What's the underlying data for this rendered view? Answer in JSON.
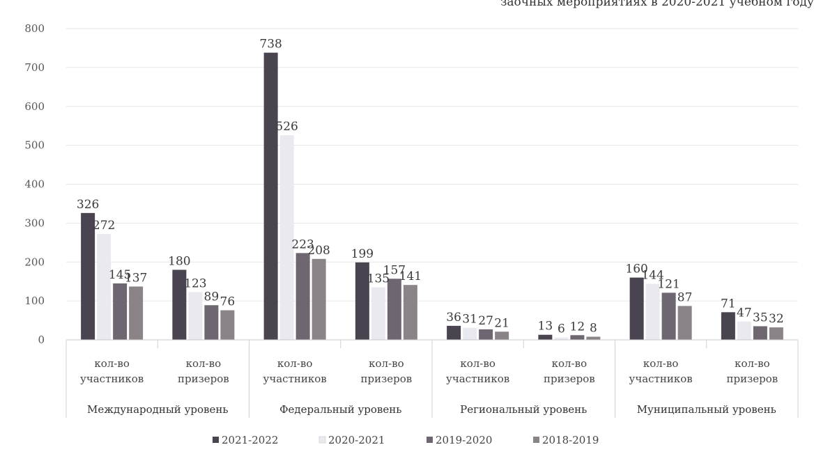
{
  "chart_data": {
    "type": "bar",
    "title": "заочных мероприятиях в 2020-2021 учебном году",
    "ylim": [
      0,
      800
    ],
    "yticks": [
      0,
      100,
      200,
      300,
      400,
      500,
      600,
      700,
      800
    ],
    "grid": true,
    "legend_position": "bottom",
    "groups": [
      {
        "label": "Международный уровень",
        "categories": [
          [
            "кол-во",
            "участников"
          ],
          [
            "кол-во",
            "призеров"
          ]
        ]
      },
      {
        "label": "Федеральный уровень",
        "categories": [
          [
            "кол-во",
            "участников"
          ],
          [
            "кол-во",
            "призеров"
          ]
        ]
      },
      {
        "label": "Региональный уровень",
        "categories": [
          [
            "кол-во",
            "участников"
          ],
          [
            "кол-во",
            "призеров"
          ]
        ]
      },
      {
        "label": "Муниципальный уровень",
        "categories": [
          [
            "кол-во",
            "участников"
          ],
          [
            "кол-во",
            "призеров"
          ]
        ]
      }
    ],
    "series": [
      {
        "name": "2021-2022",
        "color": "#4a4450",
        "values": [
          326,
          180,
          738,
          199,
          36,
          13,
          160,
          71
        ]
      },
      {
        "name": "2020-2021",
        "color": "#e9e9ef",
        "values": [
          272,
          123,
          526,
          135,
          31,
          6,
          144,
          47
        ]
      },
      {
        "name": "2019-2020",
        "color": "#6e6670",
        "values": [
          145,
          89,
          223,
          157,
          27,
          12,
          121,
          35
        ]
      },
      {
        "name": "2018-2019",
        "color": "#8a8488",
        "values": [
          137,
          76,
          208,
          141,
          21,
          8,
          87,
          32
        ]
      }
    ]
  }
}
